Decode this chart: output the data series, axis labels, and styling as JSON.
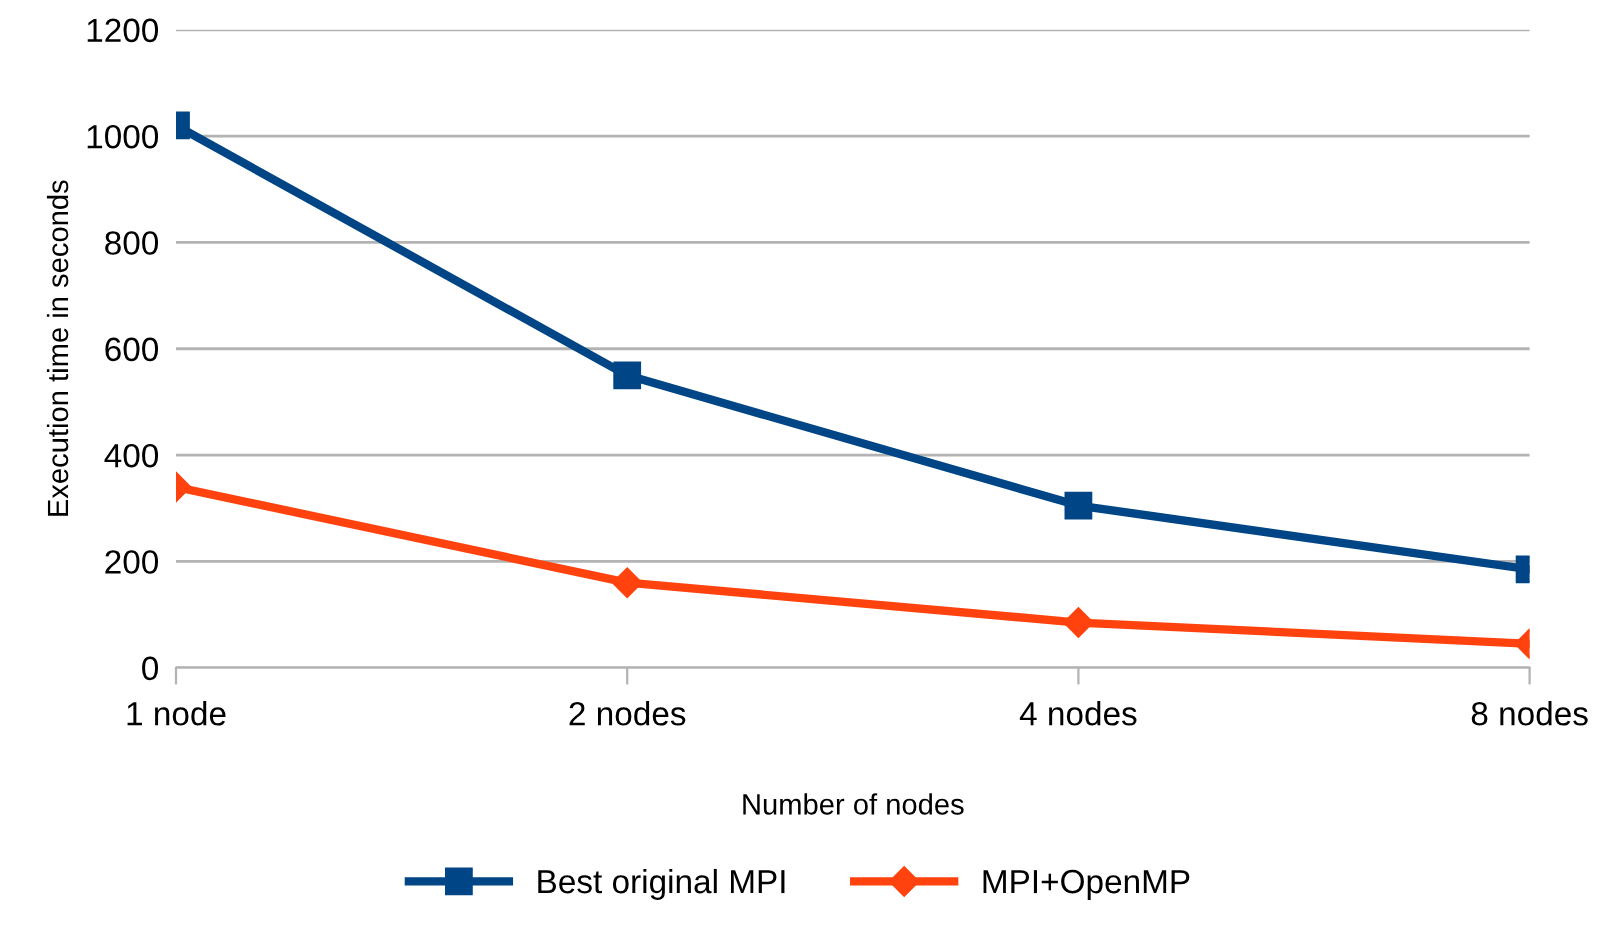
{
  "chart_data": {
    "type": "line",
    "xlabel": "Number of nodes",
    "ylabel": "Execution time in seconds",
    "categories": [
      "1 node",
      "2 nodes",
      "4 nodes",
      "8 nodes"
    ],
    "series": [
      {
        "name": "Best original MPI",
        "color": "#004586",
        "marker": "square",
        "values": [
          1020,
          550,
          305,
          185
        ]
      },
      {
        "name": "MPI+OpenMP",
        "color": "#ff420e",
        "marker": "diamond",
        "values": [
          340,
          160,
          85,
          45
        ]
      }
    ],
    "ylim": [
      0,
      1200
    ],
    "yticks": [
      0,
      200,
      400,
      600,
      800,
      1000,
      1200
    ],
    "grid": "y",
    "legend": "bottom",
    "line_style": "solid"
  }
}
